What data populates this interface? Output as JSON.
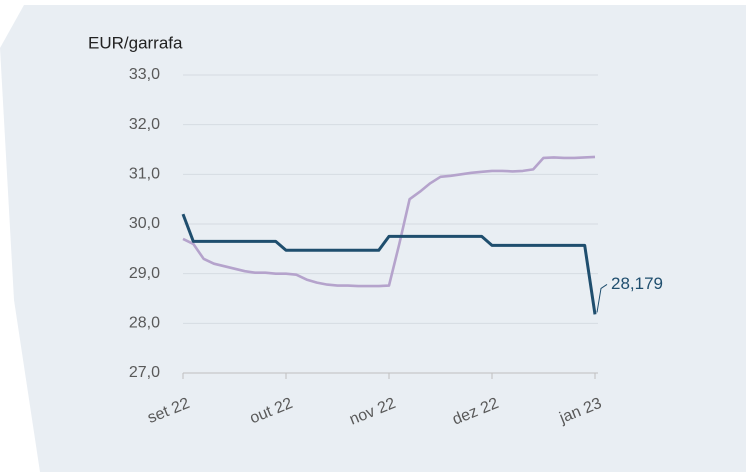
{
  "chart_data": {
    "type": "line",
    "title": "EUR/garrafa",
    "categories": [
      "set 22",
      null,
      null,
      null,
      null,
      null,
      null,
      null,
      null,
      null,
      "out 22",
      null,
      null,
      null,
      null,
      null,
      null,
      null,
      null,
      null,
      "nov 22",
      null,
      null,
      null,
      null,
      null,
      null,
      null,
      null,
      null,
      "dez 22",
      null,
      null,
      null,
      null,
      null,
      null,
      null,
      null,
      null,
      "jan 23"
    ],
    "series": [
      {
        "color": "#1f4e6e",
        "values": [
          30.2,
          29.65,
          29.65,
          29.65,
          29.65,
          29.65,
          29.65,
          29.65,
          29.65,
          29.65,
          29.47,
          29.47,
          29.47,
          29.47,
          29.47,
          29.47,
          29.47,
          29.47,
          29.47,
          29.47,
          29.75,
          29.75,
          29.75,
          29.75,
          29.75,
          29.75,
          29.75,
          29.75,
          29.75,
          29.75,
          29.57,
          29.57,
          29.57,
          29.57,
          29.57,
          29.57,
          29.57,
          29.57,
          29.57,
          29.57,
          28.179
        ],
        "value_labels": [
          null,
          null,
          null,
          null,
          null,
          null,
          null,
          null,
          null,
          null,
          null,
          null,
          null,
          null,
          null,
          null,
          null,
          null,
          null,
          null,
          null,
          null,
          null,
          null,
          null,
          null,
          null,
          null,
          null,
          null,
          null,
          null,
          null,
          null,
          null,
          null,
          null,
          null,
          null,
          null,
          "28,179"
        ]
      },
      {
        "color": "#b5a3cc",
        "values": [
          29.7,
          29.6,
          29.3,
          29.2,
          29.15,
          29.1,
          29.05,
          29.02,
          29.02,
          29.0,
          29.0,
          28.98,
          28.88,
          28.82,
          28.78,
          28.76,
          28.76,
          28.75,
          28.75,
          28.75,
          28.76,
          29.6,
          30.5,
          30.65,
          30.82,
          30.95,
          30.97,
          31.0,
          31.03,
          31.05,
          31.07,
          31.07,
          31.06,
          31.07,
          31.1,
          31.33,
          31.34,
          31.33,
          31.33,
          31.34,
          31.35
        ]
      }
    ],
    "ylim": [
      27,
      33
    ],
    "yticks": [
      {
        "value": 27,
        "label": "27,0"
      },
      {
        "value": 28,
        "label": "28,0"
      },
      {
        "value": 29,
        "label": "29,0"
      },
      {
        "value": 30,
        "label": "30,0"
      },
      {
        "value": 31,
        "label": "31,0"
      },
      {
        "value": 32,
        "label": "32,0"
      },
      {
        "value": 33,
        "label": "33,0"
      }
    ],
    "grid": true
  }
}
